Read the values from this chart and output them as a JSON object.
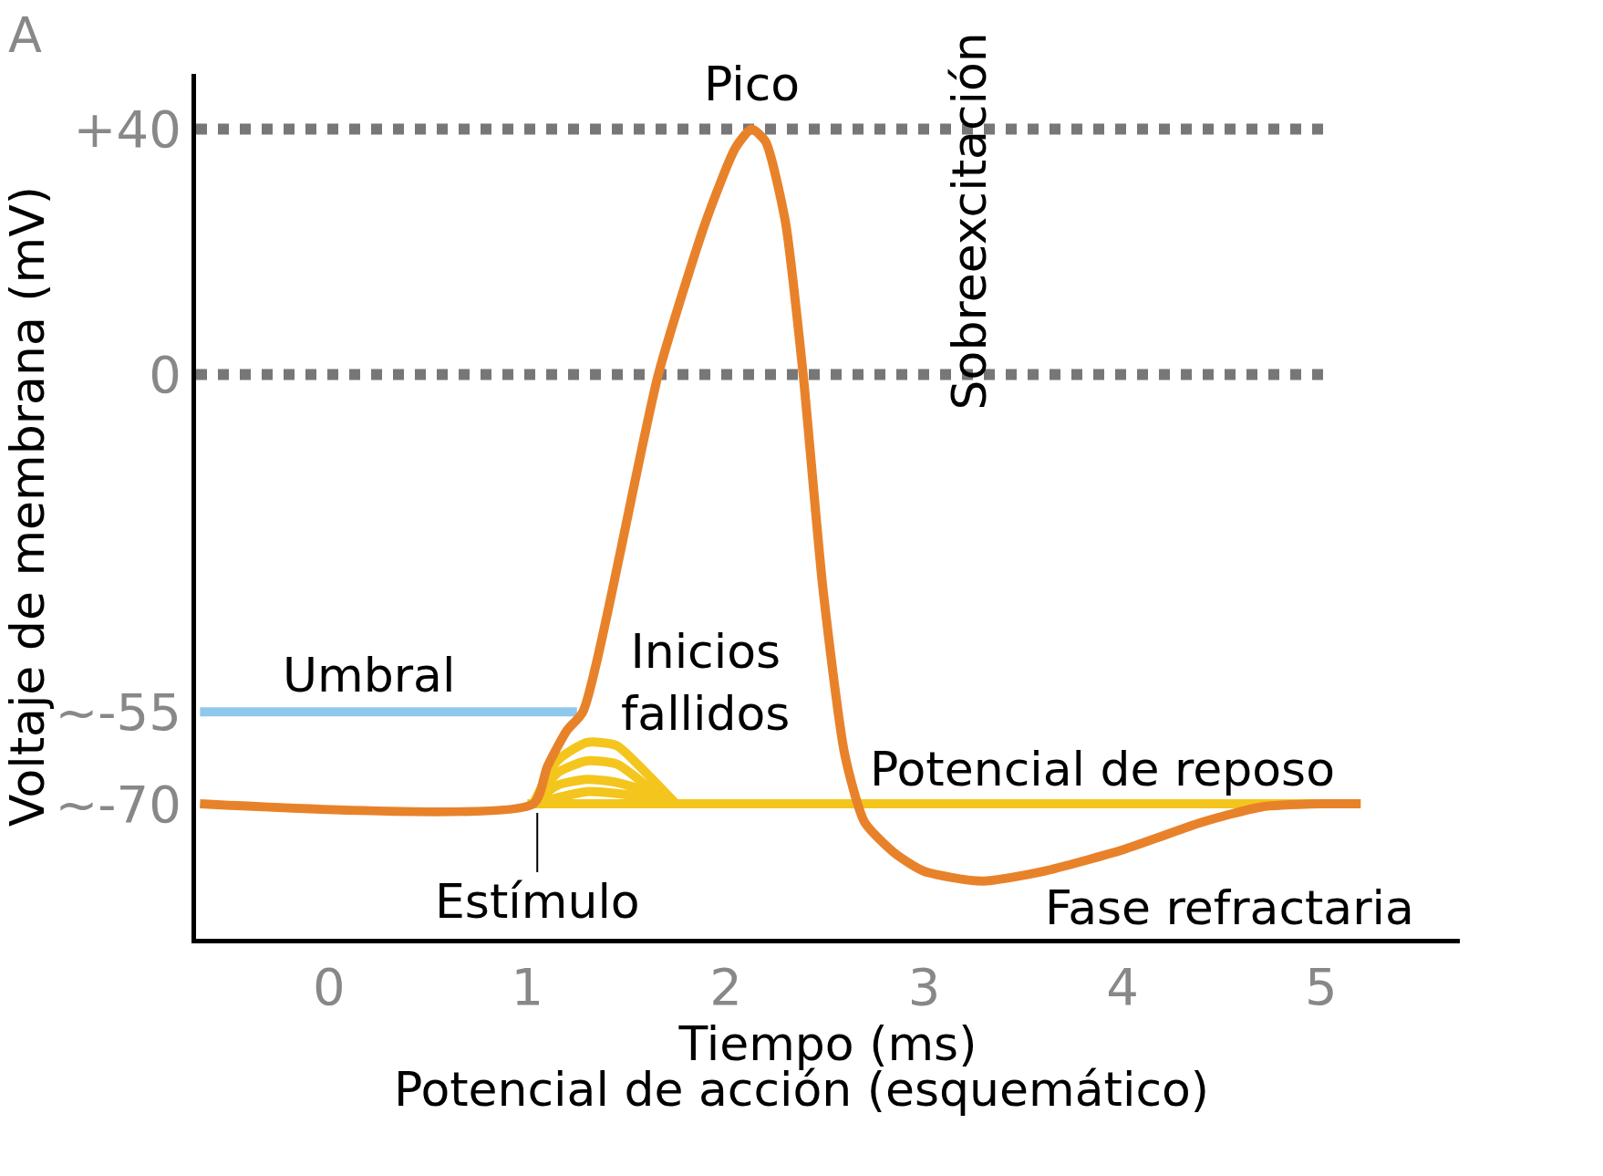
{
  "chart_data": {
    "type": "line",
    "title": "Potencial de acción (esquemático)",
    "xlabel": "Tiempo (ms)",
    "ylabel": "Voltaje de membrana (mV)",
    "xlim": [
      -0.67,
      5.7
    ],
    "xticks": [
      0,
      1,
      2,
      3,
      4,
      5
    ],
    "ylim": [
      -92,
      49
    ],
    "yticks": [
      {
        "value": 40,
        "label": "+40"
      },
      0,
      {
        "value": -55,
        "label": "~-55"
      },
      {
        "value": -70,
        "label": "~-70"
      }
    ],
    "grid": false,
    "marker": "none",
    "line_style": "solid",
    "series": [
      {
        "color": "#8fc8ea",
        "x": [
          -0.65,
          1.25
        ],
        "values": [
          -55,
          -55
        ]
      },
      {
        "color": "#f4c51c",
        "x": [
          1.0,
          5.2
        ],
        "values": [
          -70,
          -70
        ]
      },
      {
        "color": "#f4c51c",
        "x": [
          1.03,
          1.15,
          1.3,
          1.45,
          1.6,
          1.75
        ],
        "values": [
          -70,
          -63,
          -60,
          -60.5,
          -65,
          -70
        ]
      },
      {
        "color": "#f4c51c",
        "x": [
          1.03,
          1.15,
          1.3,
          1.45,
          1.6,
          1.72
        ],
        "values": [
          -70,
          -65,
          -63,
          -63.5,
          -67,
          -70
        ]
      },
      {
        "color": "#f4c51c",
        "x": [
          1.03,
          1.15,
          1.3,
          1.45,
          1.6,
          1.7
        ],
        "values": [
          -70,
          -67,
          -66,
          -66.5,
          -68,
          -70
        ]
      },
      {
        "color": "#f4c51c",
        "x": [
          1.03,
          1.15,
          1.3,
          1.45,
          1.6,
          1.68
        ],
        "values": [
          -70,
          -69,
          -68,
          -68.3,
          -69,
          -70
        ]
      },
      {
        "color": "#e8822a",
        "x": [
          -0.65,
          1.03,
          1.1,
          1.2,
          1.28,
          1.66,
          1.9,
          2.05,
          2.13,
          2.2,
          2.3,
          2.39,
          2.49,
          2.6,
          2.7,
          2.85,
          3.0,
          3.29,
          3.6,
          4.0,
          4.4,
          4.7,
          5.0,
          5.2
        ],
        "values": [
          -70,
          -70,
          -64,
          -58,
          -55,
          0,
          25,
          37,
          40,
          38,
          25,
          0,
          -35,
          -62,
          -73,
          -78,
          -81,
          -82.6,
          -81,
          -77.5,
          -73,
          -70.5,
          -70,
          -70
        ]
      }
    ],
    "ref_lines": [
      {
        "axis": "y",
        "value": 40,
        "color": "#777777",
        "line_style": "dotted"
      },
      {
        "axis": "y",
        "value": 0,
        "color": "#777777",
        "line_style": "dotted"
      }
    ],
    "annotations": [
      "A",
      {
        "text": "Pico",
        "x": 2.13,
        "y": 40
      },
      "Sobreexcitación",
      {
        "text": "Umbral",
        "x": 0.2,
        "y": -55
      },
      "Inicios\nfallidos",
      {
        "text": "Potencial de reposo",
        "x": 3.9,
        "y": -70
      },
      "Fase refractaria",
      {
        "text": "Estímulo",
        "x": 1.05,
        "y": -70
      }
    ]
  }
}
